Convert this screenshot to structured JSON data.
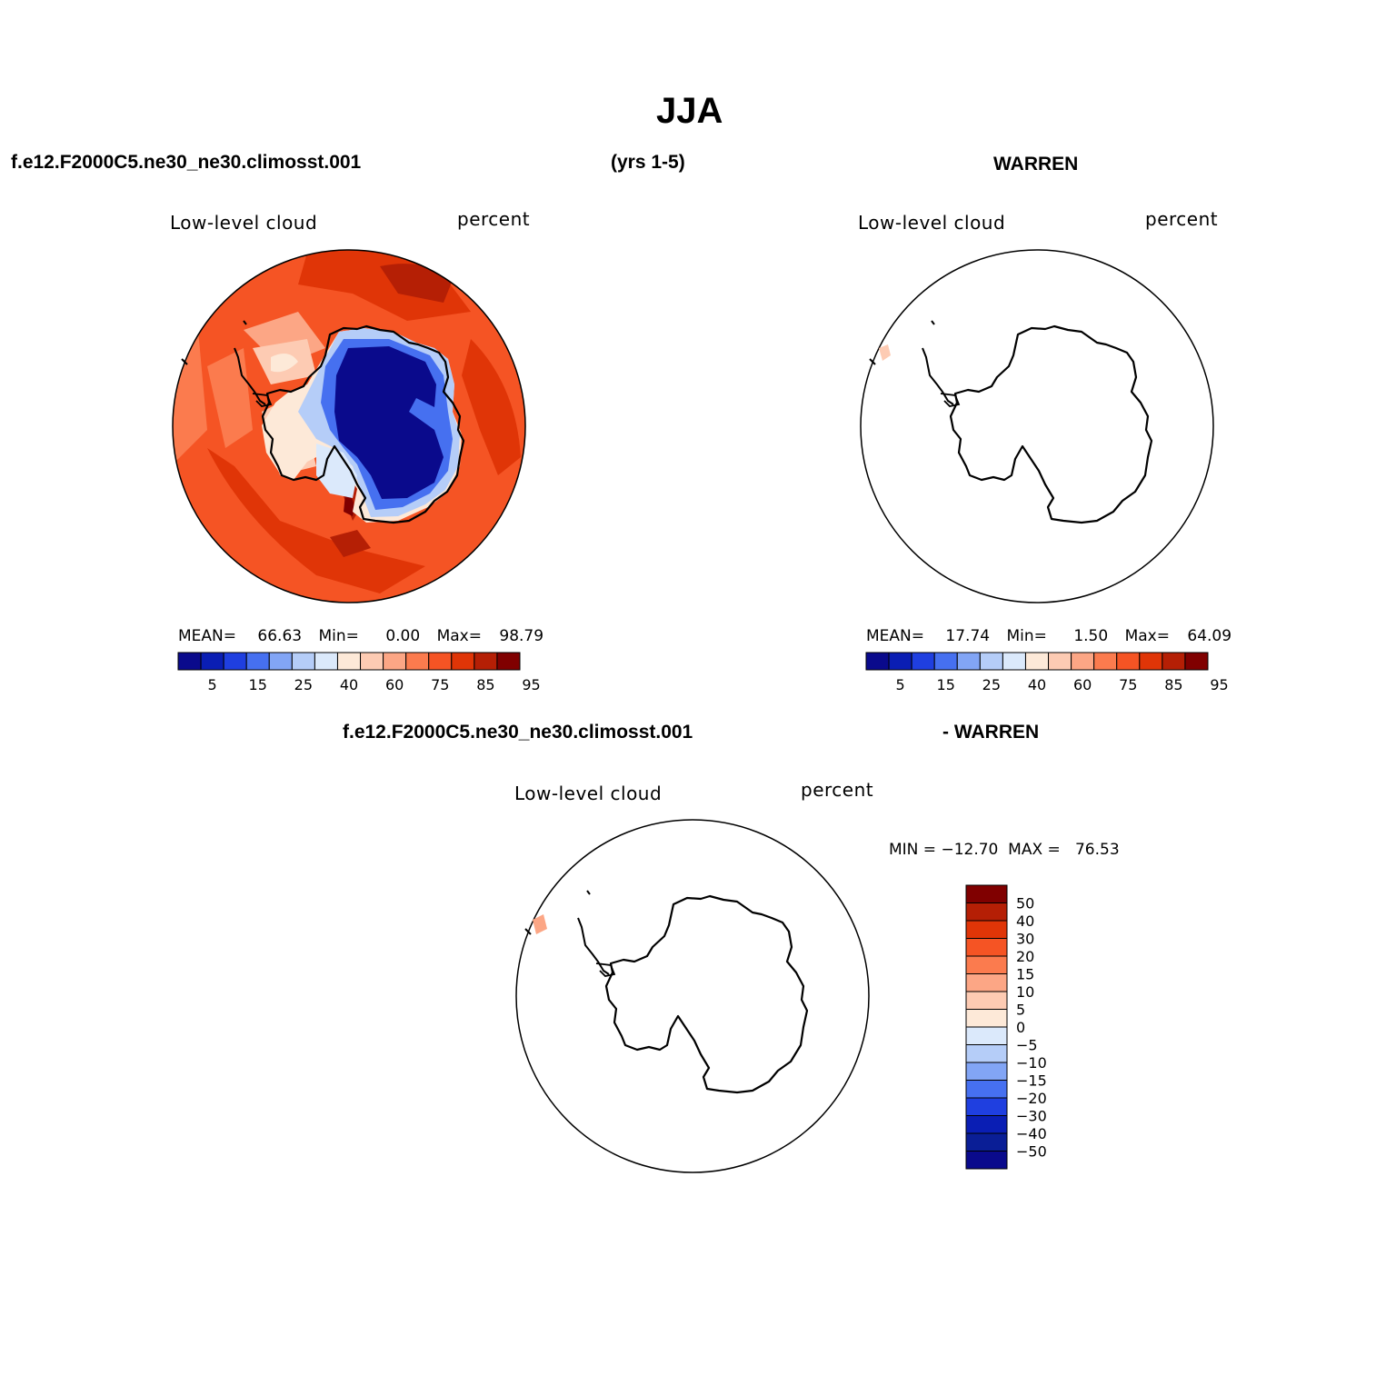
{
  "title": "JJA",
  "top_left_case": "f.e12.F2000C5.ne30_ne30.climosst.001",
  "top_years": "(yrs 1-5)",
  "top_right_case": "WARREN",
  "bottom_case": "f.e12.F2000C5.ne30_ne30.climosst.001",
  "bottom_right_case": "- WARREN",
  "panels": {
    "model": {
      "variable": "Low-level cloud",
      "units": "percent",
      "mean_label": "MEAN=",
      "mean": "66.63",
      "min_label": "Min=",
      "min": "0.00",
      "max_label": "Max=",
      "max": "98.79"
    },
    "obs": {
      "variable": "Low-level cloud",
      "units": "percent",
      "mean_label": "MEAN=",
      "mean": "17.74",
      "min_label": "Min=",
      "min": "1.50",
      "max_label": "Max=",
      "max": "64.09"
    },
    "diff": {
      "variable": "Low-level cloud",
      "units": "percent",
      "minmax": "MIN = −12.70  MAX =   76.53"
    }
  },
  "colorbar_abs": {
    "ticks": [
      "5",
      "15",
      "25",
      "40",
      "60",
      "75",
      "85",
      "95"
    ],
    "colors": [
      "#0a0a8c",
      "#0a1eb4",
      "#1f3fe0",
      "#4670f0",
      "#82a5f5",
      "#b5cdf8",
      "#dbe9fb",
      "#fde9d8",
      "#fdcbb3",
      "#fca685",
      "#fb7b4e",
      "#f55424",
      "#e03507",
      "#b51f05",
      "#800000"
    ]
  },
  "colorbar_diff": {
    "ticks": [
      "50",
      "40",
      "30",
      "20",
      "15",
      "10",
      "5",
      "0",
      "−5",
      "−10",
      "−15",
      "−20",
      "−30",
      "−40",
      "−50"
    ],
    "colors": [
      "#800000",
      "#b51f05",
      "#e03507",
      "#f55424",
      "#fb7b4e",
      "#fca685",
      "#fdcbb3",
      "#fde9d8",
      "#dbe9fb",
      "#b5cdf8",
      "#82a5f5",
      "#4670f0",
      "#1f3fe0",
      "#0a1eb4",
      "#0a1e96",
      "#0a0a8c"
    ]
  }
}
